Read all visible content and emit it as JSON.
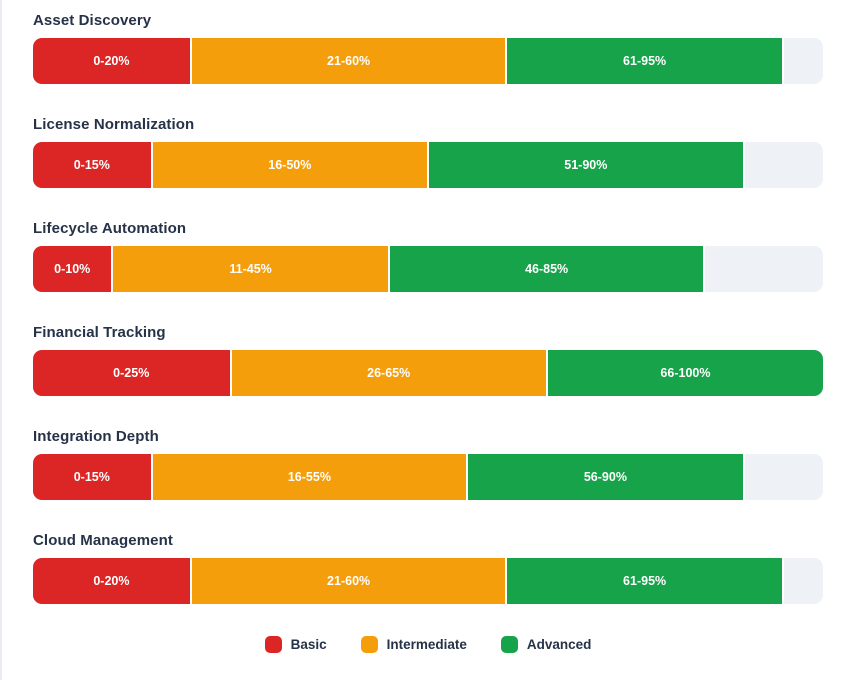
{
  "chart_data": {
    "type": "bar",
    "variant": "horizontal-stacked-range",
    "categories": [
      "Asset Discovery",
      "License Normalization",
      "Lifecycle Automation",
      "Financial Tracking",
      "Integration Depth",
      "Cloud Management"
    ],
    "series": [
      {
        "name": "Basic",
        "color": "#dc2626",
        "ranges": [
          [
            0,
            20
          ],
          [
            0,
            15
          ],
          [
            0,
            10
          ],
          [
            0,
            25
          ],
          [
            0,
            15
          ],
          [
            0,
            20
          ]
        ],
        "labels": [
          "0-20%",
          "0-15%",
          "0-10%",
          "0-25%",
          "0-15%",
          "0-20%"
        ]
      },
      {
        "name": "Intermediate",
        "color": "#f59e0b",
        "ranges": [
          [
            21,
            60
          ],
          [
            16,
            50
          ],
          [
            11,
            45
          ],
          [
            26,
            65
          ],
          [
            16,
            55
          ],
          [
            21,
            60
          ]
        ],
        "labels": [
          "21-60%",
          "16-50%",
          "11-45%",
          "26-65%",
          "16-55%",
          "21-60%"
        ]
      },
      {
        "name": "Advanced",
        "color": "#16a34a",
        "ranges": [
          [
            61,
            95
          ],
          [
            51,
            90
          ],
          [
            46,
            85
          ],
          [
            66,
            100
          ],
          [
            56,
            90
          ],
          [
            61,
            95
          ]
        ],
        "labels": [
          "61-95%",
          "51-90%",
          "46-85%",
          "66-100%",
          "56-90%",
          "61-95%"
        ]
      }
    ],
    "xlim": [
      0,
      100
    ],
    "track_color": "#eef2f7",
    "grid": false,
    "legend_position": "bottom",
    "legend": [
      "Basic",
      "Intermediate",
      "Advanced"
    ],
    "label_text_color": "#ffffff",
    "title_text_color": "#263248"
  }
}
